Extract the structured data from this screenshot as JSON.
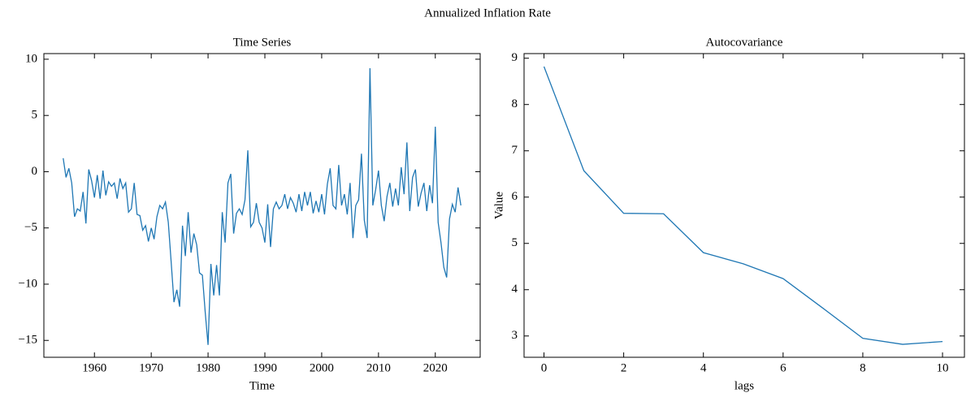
{
  "title": "Annualized Inflation Rate",
  "chart_data": [
    {
      "type": "line",
      "title": "Time Series",
      "xlabel": "Time",
      "color": "#1f77b4",
      "x": [
        1954.5,
        1955,
        1955.5,
        1956,
        1956.5,
        1957,
        1957.5,
        1958,
        1958.5,
        1959,
        1959.5,
        1960,
        1960.5,
        1961,
        1961.5,
        1962,
        1962.5,
        1963,
        1963.5,
        1964,
        1964.5,
        1965,
        1965.5,
        1966,
        1966.5,
        1967,
        1967.5,
        1968,
        1968.5,
        1969,
        1969.5,
        1970,
        1970.5,
        1971,
        1971.5,
        1972,
        1972.5,
        1973,
        1973.5,
        1974,
        1974.5,
        1975,
        1975.5,
        1976,
        1976.5,
        1977,
        1977.5,
        1978,
        1978.5,
        1979,
        1979.5,
        1980,
        1980.5,
        1981,
        1981.5,
        1982,
        1982.5,
        1983,
        1983.5,
        1984,
        1984.5,
        1985,
        1985.5,
        1986,
        1986.5,
        1987,
        1987.5,
        1988,
        1988.5,
        1989,
        1989.5,
        1990,
        1990.5,
        1991,
        1991.5,
        1992,
        1992.5,
        1993,
        1993.5,
        1994,
        1994.5,
        1995,
        1995.5,
        1996,
        1996.5,
        1997,
        1997.5,
        1998,
        1998.5,
        1999,
        1999.5,
        2000,
        2000.5,
        2001,
        2001.5,
        2002,
        2002.5,
        2003,
        2003.5,
        2004,
        2004.5,
        2005,
        2005.5,
        2006,
        2006.5,
        2007,
        2007.5,
        2008,
        2008.5,
        2009,
        2009.5,
        2010,
        2010.5,
        2011,
        2011.5,
        2012,
        2012.5,
        2013,
        2013.5,
        2014,
        2014.5,
        2015,
        2015.5,
        2016,
        2016.5,
        2017,
        2017.5,
        2018,
        2018.5,
        2019,
        2019.5,
        2020,
        2020.5,
        2021,
        2021.5,
        2022,
        2022.5,
        2023,
        2023.5,
        2024,
        2024.5
      ],
      "values": [
        1.2,
        -0.5,
        0.3,
        -1.0,
        -4.0,
        -3.3,
        -3.5,
        -1.8,
        -4.6,
        0.2,
        -0.8,
        -2.3,
        -0.3,
        -2.4,
        0.1,
        -2.1,
        -0.9,
        -1.3,
        -1.0,
        -2.4,
        -0.6,
        -1.5,
        -1.0,
        -3.6,
        -3.3,
        -1.0,
        -3.8,
        -3.9,
        -5.2,
        -4.8,
        -6.2,
        -5.0,
        -6.0,
        -4.0,
        -3.0,
        -3.3,
        -2.7,
        -4.5,
        -8.0,
        -11.6,
        -10.5,
        -12.0,
        -4.8,
        -7.5,
        -3.6,
        -7.2,
        -5.5,
        -6.5,
        -9.0,
        -9.2,
        -12.5,
        -15.4,
        -8.2,
        -11.0,
        -8.3,
        -11.0,
        -3.6,
        -6.3,
        -1.0,
        -0.2,
        -5.5,
        -3.7,
        -3.3,
        -3.8,
        -2.5,
        1.9,
        -4.9,
        -4.5,
        -2.8,
        -4.5,
        -5.0,
        -6.3,
        -2.9,
        -6.7,
        -3.3,
        -2.7,
        -3.3,
        -3.0,
        -2.0,
        -3.3,
        -2.3,
        -2.8,
        -3.6,
        -2.0,
        -3.5,
        -1.8,
        -3.0,
        -1.8,
        -3.7,
        -2.6,
        -3.6,
        -2.0,
        -3.8,
        -1.1,
        0.3,
        -3.0,
        -3.3,
        0.6,
        -3.0,
        -2.0,
        -3.8,
        -1.0,
        -5.9,
        -3.0,
        -2.5,
        1.6,
        -4.3,
        -5.9,
        9.2,
        -3.0,
        -1.6,
        0.1,
        -3.0,
        -4.4,
        -2.2,
        -1.0,
        -3.1,
        -1.5,
        -3.0,
        0.4,
        -2.0,
        2.6,
        -3.5,
        -0.5,
        0.2,
        -3.1,
        -1.9,
        -1.0,
        -3.5,
        -1.2,
        -2.8,
        4.0,
        -4.5,
        -6.3,
        -8.5,
        -9.4,
        -4.2,
        -2.9,
        -3.6,
        -1.4,
        -3.0
      ],
      "xlim": [
        1951.1,
        2027.9
      ],
      "ylim": [
        -16.5,
        10.5
      ],
      "xticks": [
        1960,
        1970,
        1980,
        1990,
        2000,
        2010,
        2020
      ],
      "yticks": [
        {
          "value": -15,
          "label": "−15"
        },
        {
          "value": -10,
          "label": "−10"
        },
        {
          "value": -5,
          "label": "−5"
        },
        0,
        5,
        10
      ]
    },
    {
      "type": "line",
      "title": "Autocovariance",
      "xlabel": "lags",
      "ylabel": "Value",
      "color": "#1f77b4",
      "x": [
        0,
        1,
        2,
        3,
        4,
        5,
        6,
        7,
        8,
        9,
        10
      ],
      "values": [
        8.82,
        6.57,
        5.65,
        5.64,
        4.8,
        4.56,
        4.24,
        3.6,
        2.95,
        2.82,
        2.88
      ],
      "xlim": [
        -0.5,
        10.55
      ],
      "ylim": [
        2.54,
        9.1
      ],
      "xticks": [
        0,
        2,
        4,
        6,
        8,
        10
      ],
      "yticks": [
        3,
        4,
        5,
        6,
        7,
        8,
        9
      ]
    }
  ]
}
